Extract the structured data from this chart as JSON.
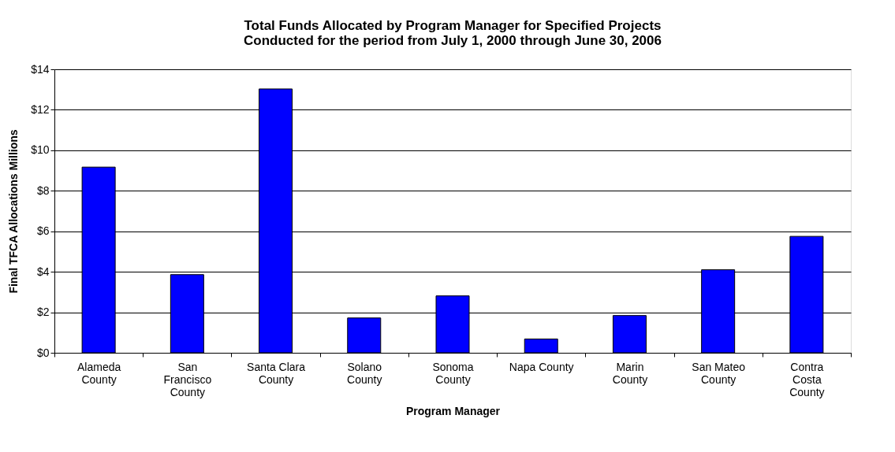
{
  "chart_data": {
    "type": "bar",
    "title": [
      "Total Funds Allocated by Program Manager for Specified Projects",
      "Conducted for the period from July 1, 2000 through June 30, 2006"
    ],
    "xlabel": "Program Manager",
    "ylabel": "Final TFCA Allocations Millions",
    "categories": [
      "Alameda County",
      "San Francisco County",
      "Santa Clara County",
      "Solano County",
      "Sonoma County",
      "Napa County",
      "Marin County",
      "San Mateo County",
      "Contra Costa County"
    ],
    "values": [
      9.17,
      3.86,
      13.03,
      1.72,
      2.81,
      0.68,
      1.84,
      4.1,
      5.75
    ],
    "color": "#0000ff",
    "ylim": [
      0,
      14
    ],
    "yticks": [
      {
        "value": 0,
        "label": "$0"
      },
      {
        "value": 2,
        "label": "$2"
      },
      {
        "value": 4,
        "label": "$4"
      },
      {
        "value": 6,
        "label": "$6"
      },
      {
        "value": 8,
        "label": "$8"
      },
      {
        "value": 10,
        "label": "$10"
      },
      {
        "value": 12,
        "label": "$12"
      },
      {
        "value": 14,
        "label": "$14"
      }
    ],
    "grid": "y"
  }
}
